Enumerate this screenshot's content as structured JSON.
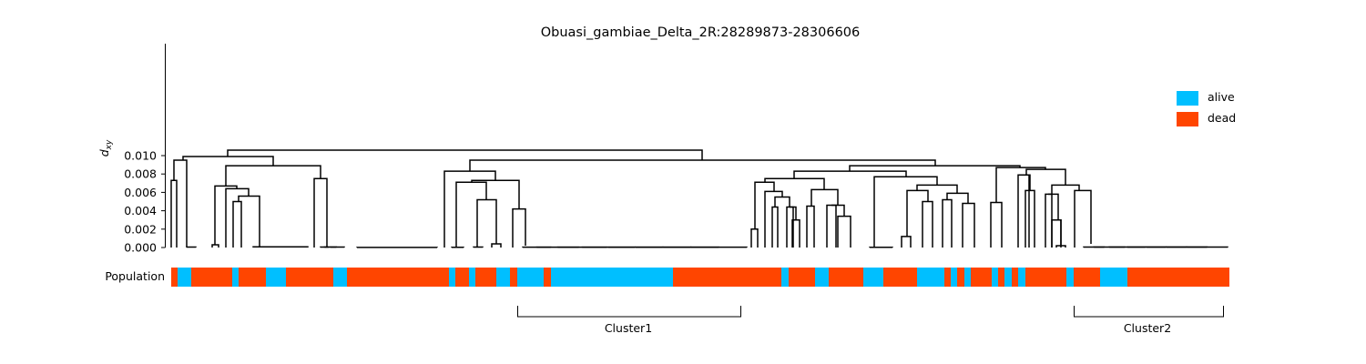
{
  "chart_data": {
    "type": "dendrogram",
    "title": "Obuasi_gambiae_Delta_2R:28289873-28306606",
    "ylabel_main": "d",
    "ylabel_sub": "xy",
    "ylim": [
      0,
      0.0111
    ],
    "y_ticks": [
      "0.000",
      "0.002",
      "0.004",
      "0.006",
      "0.008",
      "0.010"
    ],
    "population_label": "Population",
    "legend": [
      {
        "label": "alive",
        "color": "#00bfff"
      },
      {
        "label": "dead",
        "color": "#ff4500"
      }
    ],
    "clusters": [
      {
        "name": "Cluster1"
      },
      {
        "name": "Cluster2"
      }
    ],
    "notable_merge_heights": [
      0.0106,
      0.0095,
      0.0089,
      0.0084,
      0.0075,
      0.0073
    ]
  }
}
